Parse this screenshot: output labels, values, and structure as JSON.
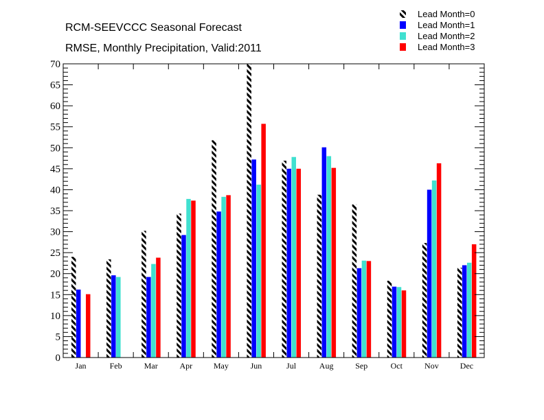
{
  "chart_data": {
    "type": "bar",
    "title": "RCM-SEEVCCC Seasonal Forecast",
    "subtitle": "RMSE, Monthly Precipitation, Valid:2011",
    "xlabel": "",
    "ylabel": "",
    "ylim": [
      0,
      70
    ],
    "yticks": [
      0,
      5,
      10,
      15,
      20,
      25,
      30,
      35,
      40,
      45,
      50,
      55,
      60,
      65,
      70
    ],
    "categories": [
      "Jan",
      "Feb",
      "Mar",
      "Apr",
      "May",
      "Jun",
      "Jul",
      "Aug",
      "Sep",
      "Oct",
      "Nov",
      "Dec"
    ],
    "legend_position": "top-right",
    "grid": false,
    "series": [
      {
        "name": "Lead Month=0",
        "color": "#000000",
        "pattern": "hatched",
        "values": [
          24.0,
          23.4,
          30.2,
          34.3,
          51.8,
          70.0,
          46.9,
          38.8,
          36.5,
          18.3,
          27.3,
          21.4
        ]
      },
      {
        "name": "Lead Month=1",
        "color": "#0000ff",
        "pattern": "solid",
        "values": [
          16.2,
          19.6,
          19.2,
          29.2,
          34.8,
          47.2,
          45.0,
          50.1,
          21.3,
          16.9,
          40.0,
          22.0
        ]
      },
      {
        "name": "Lead Month=2",
        "color": "#40e0d0",
        "pattern": "solid",
        "values": [
          null,
          19.2,
          22.3,
          37.8,
          38.3,
          41.2,
          47.8,
          48.0,
          23.1,
          16.8,
          42.2,
          22.6
        ]
      },
      {
        "name": "Lead Month=3",
        "color": "#ff0000",
        "pattern": "solid",
        "values": [
          15.1,
          null,
          23.8,
          37.4,
          38.7,
          55.7,
          45.0,
          45.2,
          23.0,
          16.0,
          46.3,
          27.0
        ]
      }
    ]
  }
}
